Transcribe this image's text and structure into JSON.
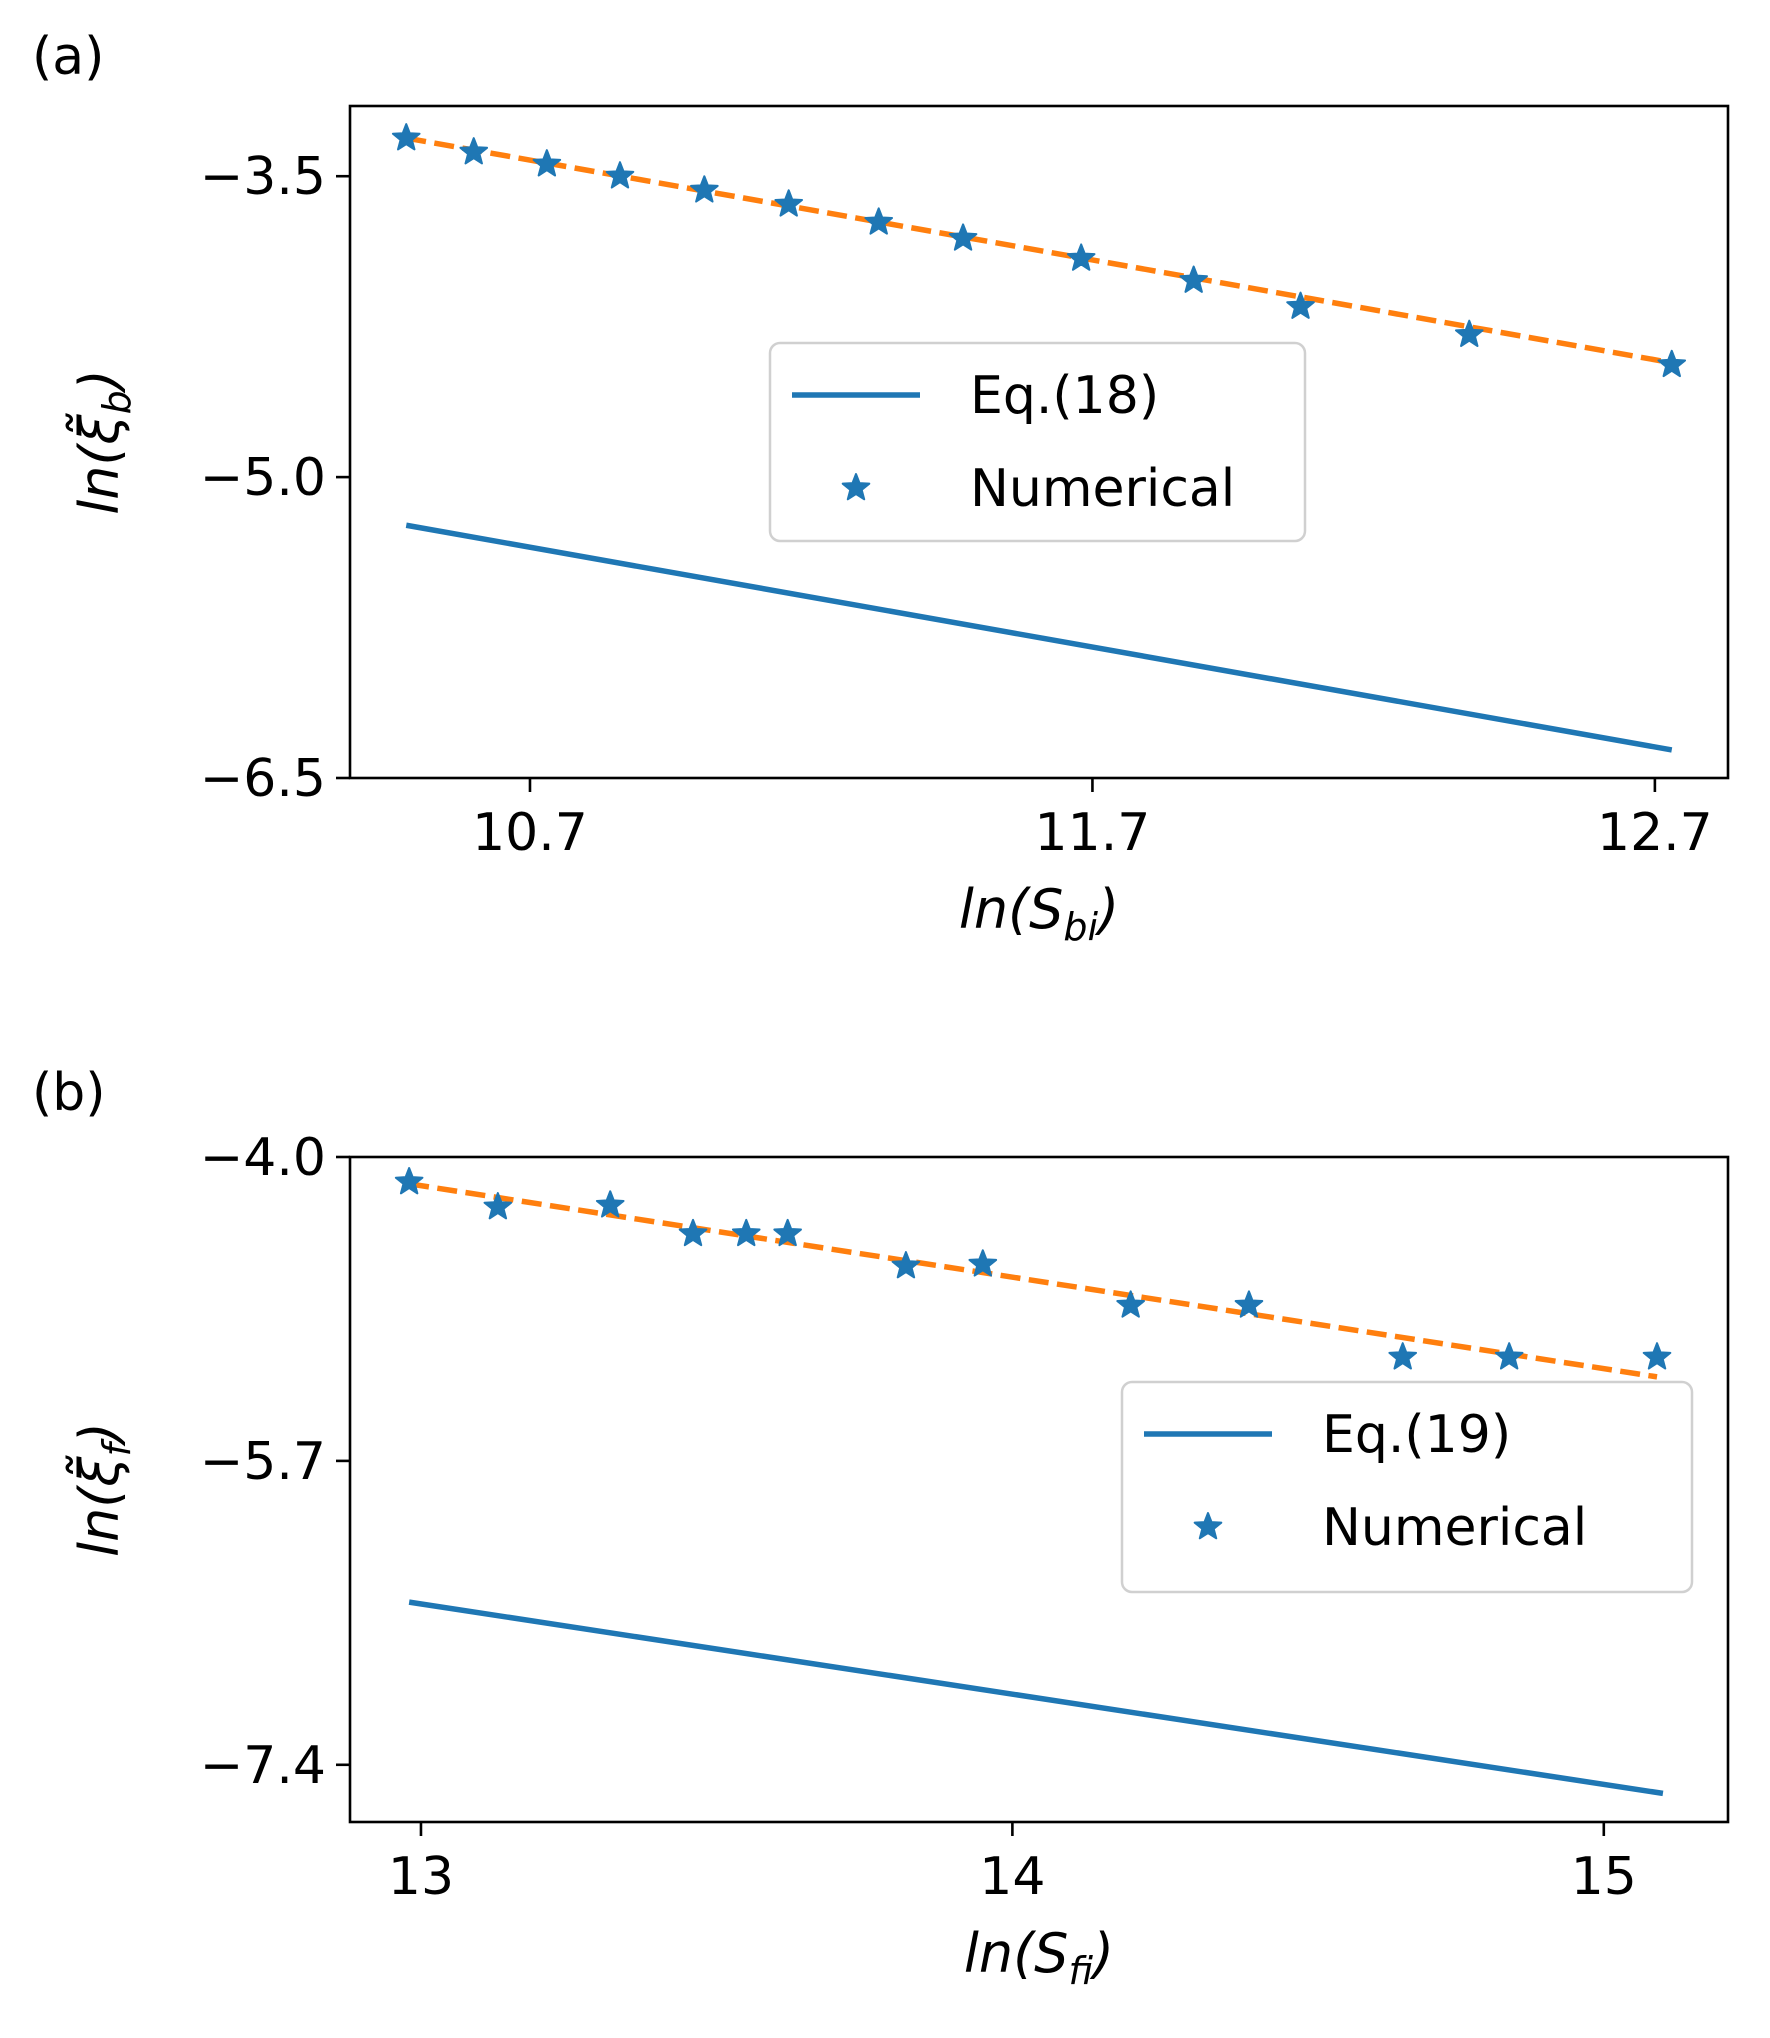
{
  "chart_data": [
    {
      "panel_label": "(a)",
      "type": "line",
      "xlabel": {
        "base": "ln(S",
        "sub": "bi",
        "close": ")"
      },
      "ylabel": {
        "base": "ln(ξ̃",
        "sub": "b",
        "close": ")"
      },
      "xlim": [
        10.38,
        12.83
      ],
      "ylim": [
        -6.5,
        -3.15
      ],
      "x_ticks": [
        10.7,
        11.7,
        12.7
      ],
      "x_tick_labels": [
        "10.7",
        "11.7",
        "12.7"
      ],
      "y_ticks": [
        -3.5,
        -5.0,
        -6.5
      ],
      "y_tick_labels": [
        "−3.5",
        "−5.0",
        "−6.5"
      ],
      "series": [
        {
          "name": "Eq.(18)",
          "kind": "solid-line",
          "color": "#1f77b4",
          "x": [
            10.48,
            12.73
          ],
          "y": [
            -5.24,
            -6.36
          ]
        },
        {
          "name": "Numerical",
          "kind": "star-markers",
          "color": "#1f77b4",
          "x": [
            10.48,
            10.6,
            10.73,
            10.86,
            11.01,
            11.16,
            11.32,
            11.47,
            11.68,
            11.88,
            12.07,
            12.37,
            12.73
          ],
          "y": [
            -3.31,
            -3.38,
            -3.44,
            -3.5,
            -3.57,
            -3.64,
            -3.73,
            -3.81,
            -3.91,
            -4.02,
            -4.15,
            -4.29,
            -4.44
          ]
        },
        {
          "name": "fit",
          "kind": "dashed-line",
          "color": "#ff7f0e",
          "x": [
            10.48,
            12.73
          ],
          "y": [
            -3.31,
            -4.43
          ]
        }
      ],
      "legend": {
        "position": "center-right",
        "entries": [
          {
            "label": "Eq.(18)",
            "symbol": "line"
          },
          {
            "label": "Numerical",
            "symbol": "star"
          }
        ]
      }
    },
    {
      "panel_label": "(b)",
      "type": "line",
      "xlabel": {
        "base": "ln(S",
        "sub": "fi",
        "close": ")"
      },
      "ylabel": {
        "base": "ln(ξ̃",
        "sub": "f",
        "close": ")"
      },
      "xlim": [
        12.88,
        15.21
      ],
      "ylim": [
        -7.72,
        -4.0
      ],
      "x_ticks": [
        13,
        14,
        15
      ],
      "x_tick_labels": [
        "13",
        "14",
        "15"
      ],
      "y_ticks": [
        -4.0,
        -5.7,
        -7.4
      ],
      "y_tick_labels": [
        "−4.0",
        "−5.7",
        "−7.4"
      ],
      "series": [
        {
          "name": "Eq.(19)",
          "kind": "solid-line",
          "color": "#1f77b4",
          "x": [
            12.98,
            15.1
          ],
          "y": [
            -6.49,
            -7.56
          ]
        },
        {
          "name": "Numerical",
          "kind": "star-markers",
          "color": "#1f77b4",
          "x": [
            12.98,
            13.13,
            13.32,
            13.46,
            13.55,
            13.62,
            13.82,
            13.95,
            14.2,
            14.4,
            14.66,
            14.84,
            15.09
          ],
          "y": [
            -4.14,
            -4.28,
            -4.27,
            -4.43,
            -4.43,
            -4.43,
            -4.61,
            -4.6,
            -4.83,
            -4.83,
            -5.12,
            -5.12,
            -5.12
          ]
        },
        {
          "name": "fit",
          "kind": "dashed-line",
          "color": "#ff7f0e",
          "x": [
            12.98,
            15.09
          ],
          "y": [
            -4.15,
            -5.23
          ]
        }
      ],
      "legend": {
        "position": "center-right",
        "entries": [
          {
            "label": "Eq.(19)",
            "symbol": "line"
          },
          {
            "label": "Numerical",
            "symbol": "star"
          }
        ]
      }
    }
  ]
}
